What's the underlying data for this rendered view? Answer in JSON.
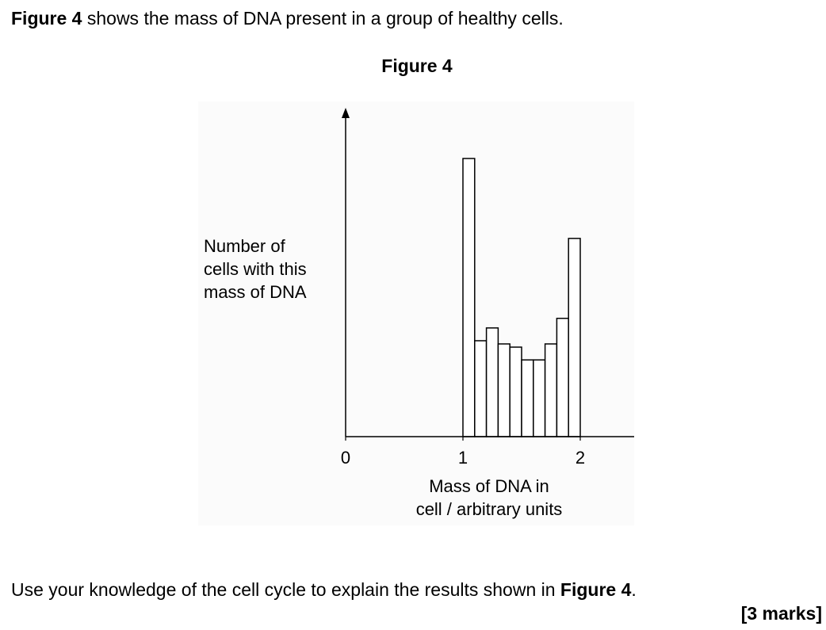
{
  "intro": {
    "bold": "Figure 4",
    "text": " shows the mass of DNA present in a group of healthy cells."
  },
  "figure_title": "Figure 4",
  "question": {
    "text": "Use your knowledge of the cell cycle to explain the results shown in ",
    "bold": "Figure 4",
    "end": "."
  },
  "marks": "[3 marks]",
  "chart_data": {
    "type": "bar",
    "title": "Figure 4",
    "xlabel_lines": [
      "Mass of DNA in",
      "cell / arbitrary units"
    ],
    "ylabel_lines": [
      "Number of",
      "cells with this",
      "mass of DNA"
    ],
    "x_ticks": [
      "0",
      "1",
      "2"
    ],
    "xlim": [
      0,
      2.45
    ],
    "ylim": [
      0,
      100
    ],
    "grid": false,
    "bins": [
      {
        "x0": 1.0,
        "x1": 1.1,
        "value": 87
      },
      {
        "x0": 1.1,
        "x1": 1.2,
        "value": 30
      },
      {
        "x0": 1.2,
        "x1": 1.3,
        "value": 34
      },
      {
        "x0": 1.3,
        "x1": 1.4,
        "value": 29
      },
      {
        "x0": 1.4,
        "x1": 1.5,
        "value": 28
      },
      {
        "x0": 1.5,
        "x1": 1.6,
        "value": 24
      },
      {
        "x0": 1.6,
        "x1": 1.7,
        "value": 24
      },
      {
        "x0": 1.7,
        "x1": 1.8,
        "value": 29
      },
      {
        "x0": 1.8,
        "x1": 1.9,
        "value": 37
      },
      {
        "x0": 1.9,
        "x1": 2.0,
        "value": 62
      }
    ]
  }
}
